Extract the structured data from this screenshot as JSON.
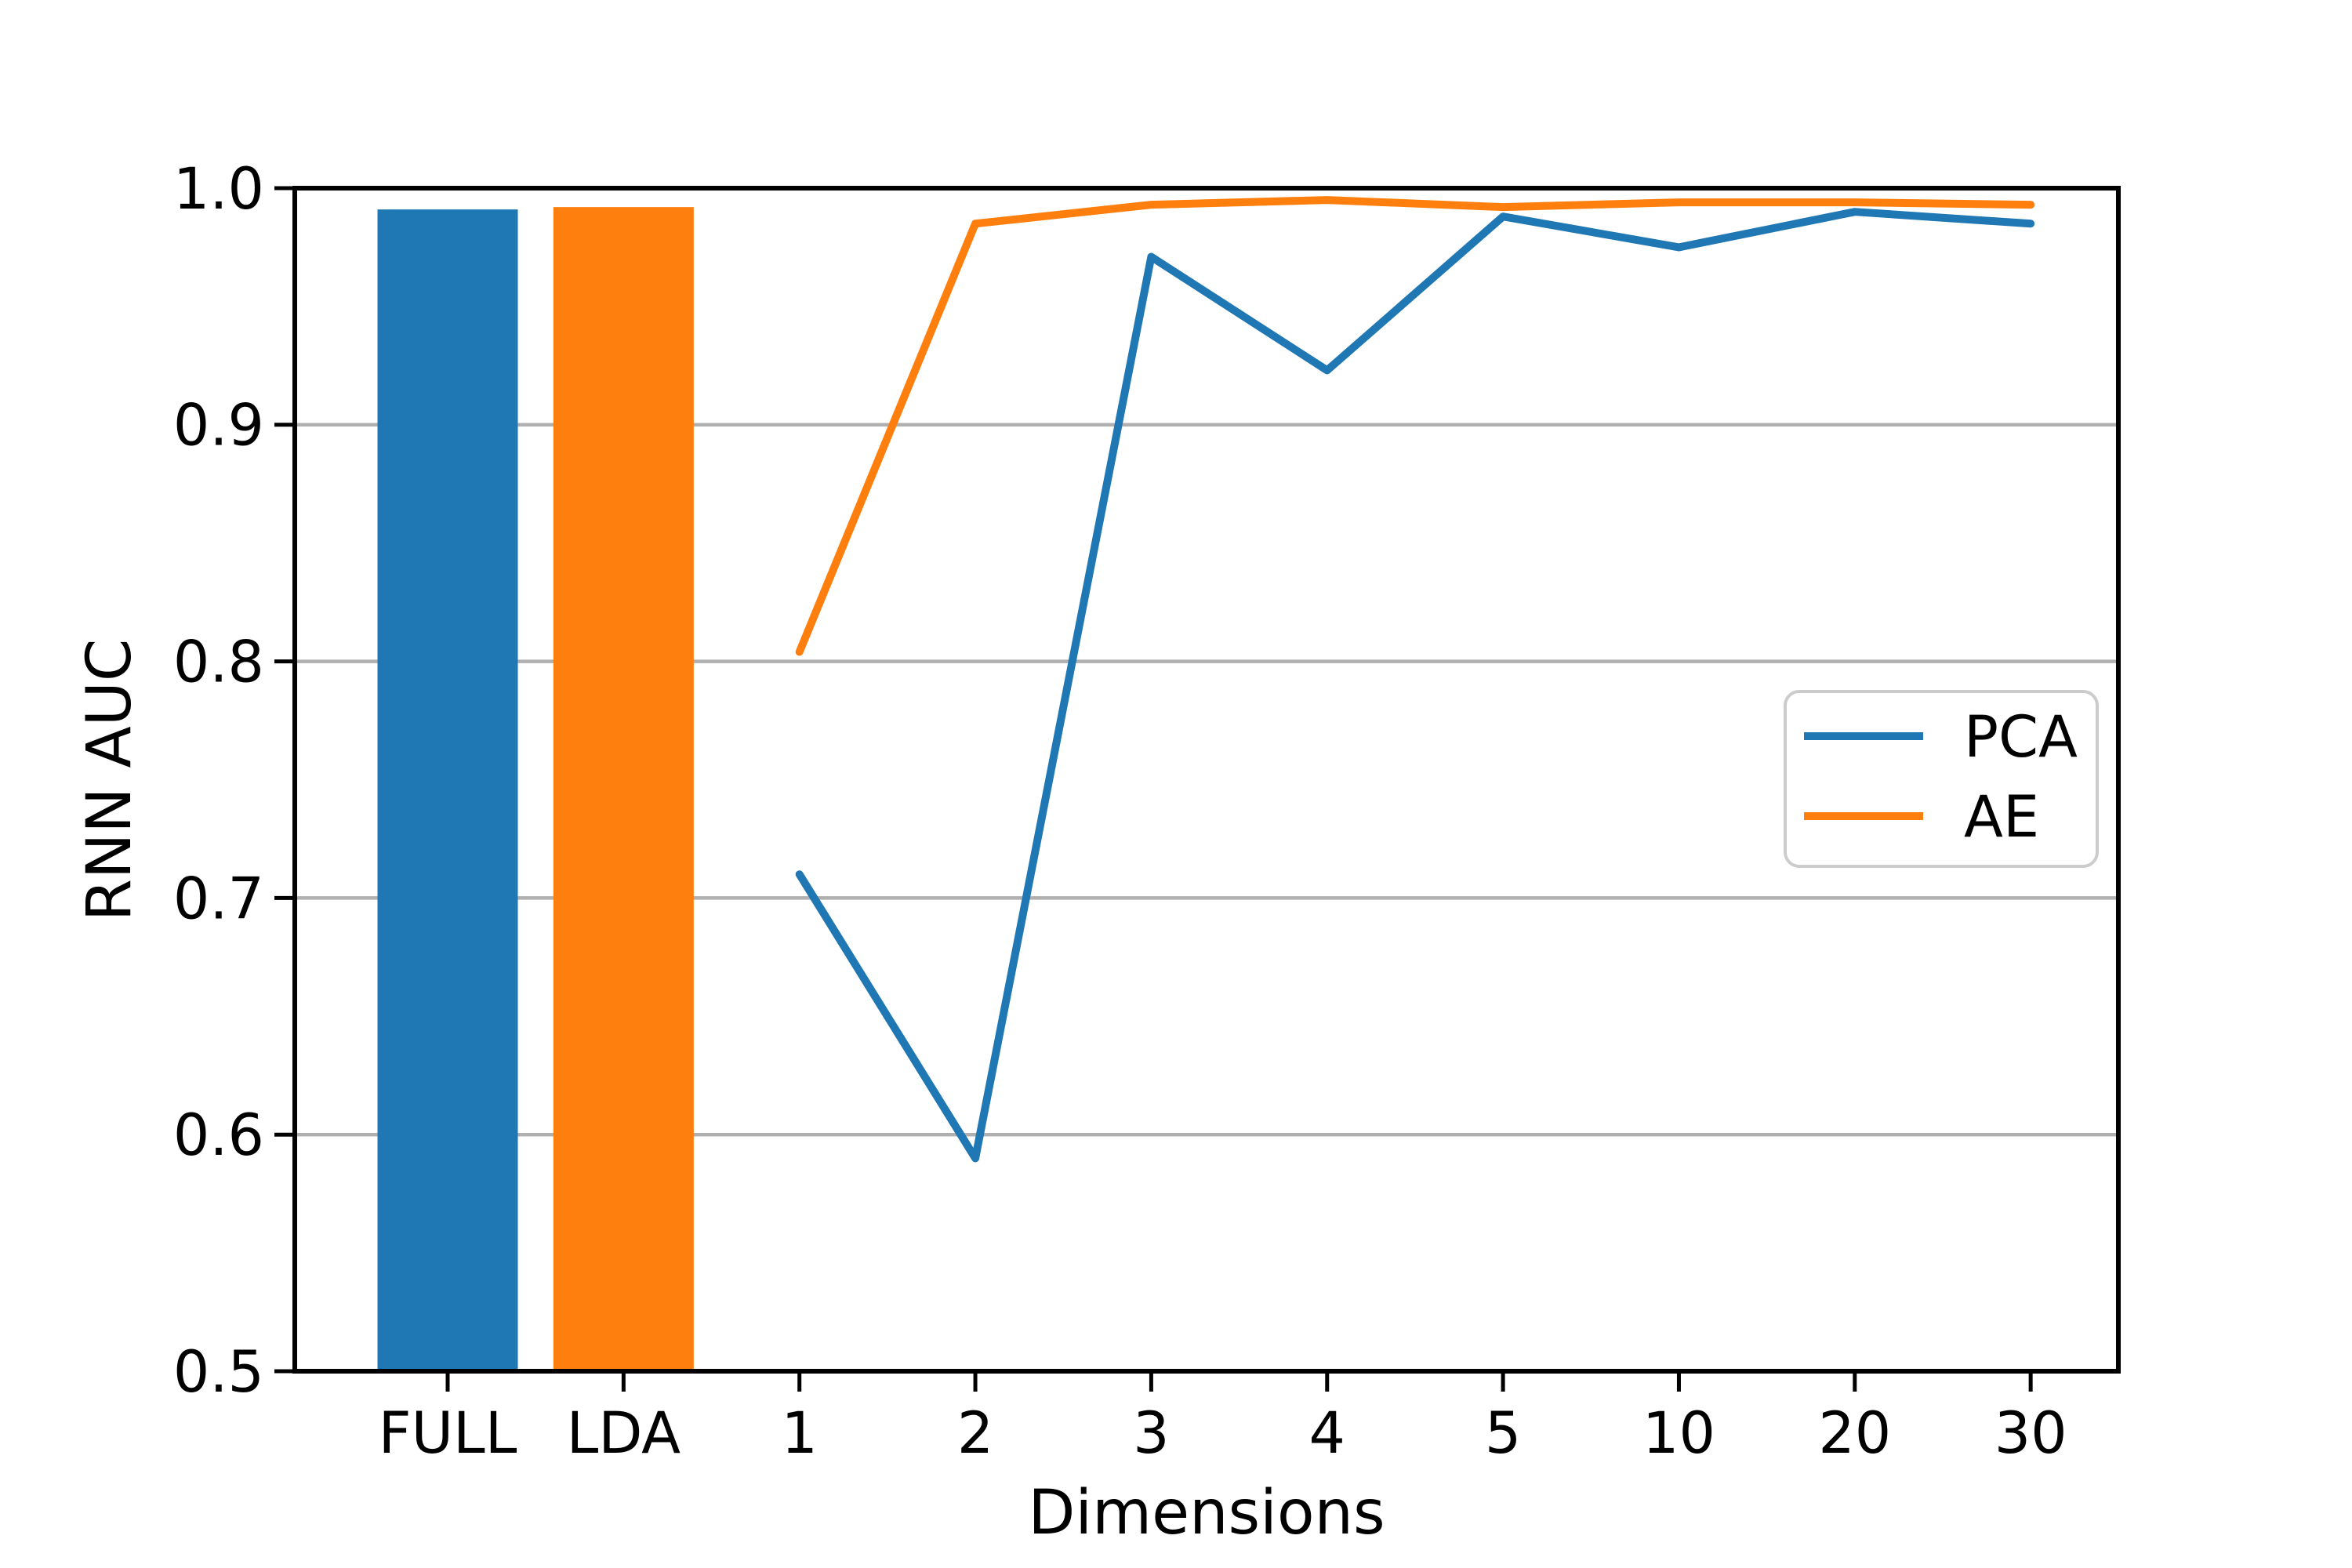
{
  "figure": {
    "background_color": "#ffffff",
    "text_color": "#000000",
    "spine_color": "#000000"
  },
  "chart_data": {
    "type": "bar+line",
    "title": "",
    "xlabel": "Dimensions",
    "ylabel": "RNN AUC",
    "categories": [
      "FULL",
      "LDA",
      "1",
      "2",
      "3",
      "4",
      "5",
      "10",
      "20",
      "30"
    ],
    "ylim": [
      0.5,
      1.0
    ],
    "yticks": [
      0.5,
      0.6,
      0.7,
      0.8,
      0.9,
      1.0
    ],
    "ytick_labels": [
      "0.5",
      "0.6",
      "0.7",
      "0.8",
      "0.9",
      "1.0"
    ],
    "grid": "horizontal",
    "grid_color": "#b0b0b0",
    "grid_values": [
      0.6,
      0.7,
      0.8,
      0.9
    ],
    "bars": [
      {
        "category": "FULL",
        "value": 0.991,
        "color": "#1f77b4"
      },
      {
        "category": "LDA",
        "value": 0.992,
        "color": "#ff7f0e"
      }
    ],
    "series": [
      {
        "name": "PCA",
        "color": "#1f77b4",
        "x": [
          "1",
          "2",
          "3",
          "4",
          "5",
          "10",
          "20",
          "30"
        ],
        "values": [
          0.71,
          0.59,
          0.971,
          0.923,
          0.988,
          0.975,
          0.99,
          0.985
        ]
      },
      {
        "name": "AE",
        "color": "#ff7f0e",
        "x": [
          "1",
          "2",
          "3",
          "4",
          "5",
          "10",
          "20",
          "30"
        ],
        "values": [
          0.804,
          0.985,
          0.993,
          0.995,
          0.992,
          0.994,
          0.994,
          0.993
        ]
      }
    ],
    "legend": {
      "position": "center-right",
      "border_color": "#cccccc",
      "background": "#ffffff",
      "entries": [
        "PCA",
        "AE"
      ]
    }
  }
}
